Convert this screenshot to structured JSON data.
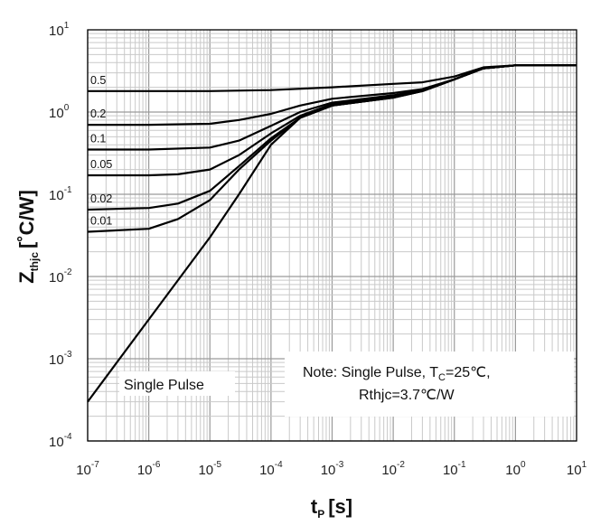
{
  "chart_data": {
    "type": "line",
    "title": "",
    "xlabel": "t",
    "xlabel_sub": "P",
    "xlabel_unit": "[s]",
    "ylabel": "Z",
    "ylabel_sub": "thjc",
    "ylabel_unit": "[˚C/W]",
    "xscale": "log",
    "yscale": "log",
    "xlim": [
      1e-07,
      10
    ],
    "ylim": [
      0.0001,
      10
    ],
    "x_tick_labels": [
      {
        "base": "10",
        "exp": "-7"
      },
      {
        "base": "10",
        "exp": "-6"
      },
      {
        "base": "10",
        "exp": "-5"
      },
      {
        "base": "10",
        "exp": "-4"
      },
      {
        "base": "10",
        "exp": "-3"
      },
      {
        "base": "10",
        "exp": "-2"
      },
      {
        "base": "10",
        "exp": "-1"
      },
      {
        "base": "10",
        "exp": "0"
      },
      {
        "base": "10",
        "exp": "1"
      }
    ],
    "y_tick_labels": [
      {
        "base": "10",
        "exp": "-4"
      },
      {
        "base": "10",
        "exp": "-3"
      },
      {
        "base": "10",
        "exp": "-2"
      },
      {
        "base": "10",
        "exp": "-1"
      },
      {
        "base": "10",
        "exp": "0"
      },
      {
        "base": "10",
        "exp": "1"
      }
    ],
    "grid": true,
    "series": [
      {
        "name": "0.5",
        "x": [
          1e-07,
          1e-06,
          1e-05,
          0.0001,
          0.001,
          0.01,
          0.03,
          0.1,
          0.3,
          1,
          10
        ],
        "y": [
          1.8,
          1.8,
          1.8,
          1.85,
          2.0,
          2.2,
          2.3,
          2.7,
          3.5,
          3.7,
          3.7
        ]
      },
      {
        "name": "0.2",
        "x": [
          1e-07,
          1e-06,
          1e-05,
          3e-05,
          0.0001,
          0.0003,
          0.001,
          0.01,
          0.03,
          0.1,
          0.3,
          1,
          10
        ],
        "y": [
          0.7,
          0.7,
          0.72,
          0.8,
          0.95,
          1.2,
          1.45,
          1.7,
          1.9,
          2.5,
          3.4,
          3.7,
          3.7
        ]
      },
      {
        "name": "0.1",
        "x": [
          1e-07,
          1e-06,
          1e-05,
          3e-05,
          0.0001,
          0.0003,
          0.001,
          0.01,
          0.03,
          0.1,
          0.3,
          1,
          10
        ],
        "y": [
          0.35,
          0.35,
          0.37,
          0.45,
          0.68,
          1.0,
          1.3,
          1.6,
          1.85,
          2.5,
          3.4,
          3.7,
          3.7
        ]
      },
      {
        "name": "0.05",
        "x": [
          1e-07,
          1e-06,
          3e-06,
          1e-05,
          3e-05,
          0.0001,
          0.0003,
          0.001,
          0.01,
          0.03,
          0.1,
          0.3,
          1,
          10
        ],
        "y": [
          0.17,
          0.17,
          0.175,
          0.2,
          0.3,
          0.55,
          0.9,
          1.25,
          1.55,
          1.8,
          2.5,
          3.4,
          3.7,
          3.7
        ]
      },
      {
        "name": "0.02",
        "x": [
          1e-07,
          1e-06,
          3e-06,
          1e-05,
          3e-05,
          0.0001,
          0.0003,
          0.001,
          0.01,
          0.03,
          0.1,
          0.3,
          1,
          10
        ],
        "y": [
          0.065,
          0.068,
          0.077,
          0.11,
          0.22,
          0.48,
          0.85,
          1.2,
          1.5,
          1.8,
          2.5,
          3.4,
          3.7,
          3.7
        ]
      },
      {
        "name": "0.01",
        "x": [
          1e-07,
          1e-06,
          3e-06,
          1e-05,
          3e-05,
          0.0001,
          0.0003,
          0.001,
          0.01,
          0.03,
          0.1,
          0.3,
          1,
          10
        ],
        "y": [
          0.035,
          0.038,
          0.05,
          0.085,
          0.2,
          0.45,
          0.85,
          1.2,
          1.5,
          1.8,
          2.5,
          3.4,
          3.7,
          3.7
        ]
      },
      {
        "name": "Single Pulse",
        "x": [
          1e-07,
          1e-06,
          1e-05,
          3e-05,
          0.0001,
          0.0003,
          0.001,
          0.01,
          0.03,
          0.1,
          0.3,
          1,
          10
        ],
        "y": [
          0.0003,
          0.003,
          0.03,
          0.1,
          0.4,
          0.85,
          1.2,
          1.5,
          1.8,
          2.5,
          3.4,
          3.7,
          3.7
        ]
      }
    ],
    "annotations": {
      "single_pulse": "Single Pulse",
      "note_prefix": "Note:  Single Pulse, T",
      "note_sub": "C",
      "note_suffix": "=25℃,",
      "note_line2": "Rthjc=3.7℃/W"
    }
  }
}
